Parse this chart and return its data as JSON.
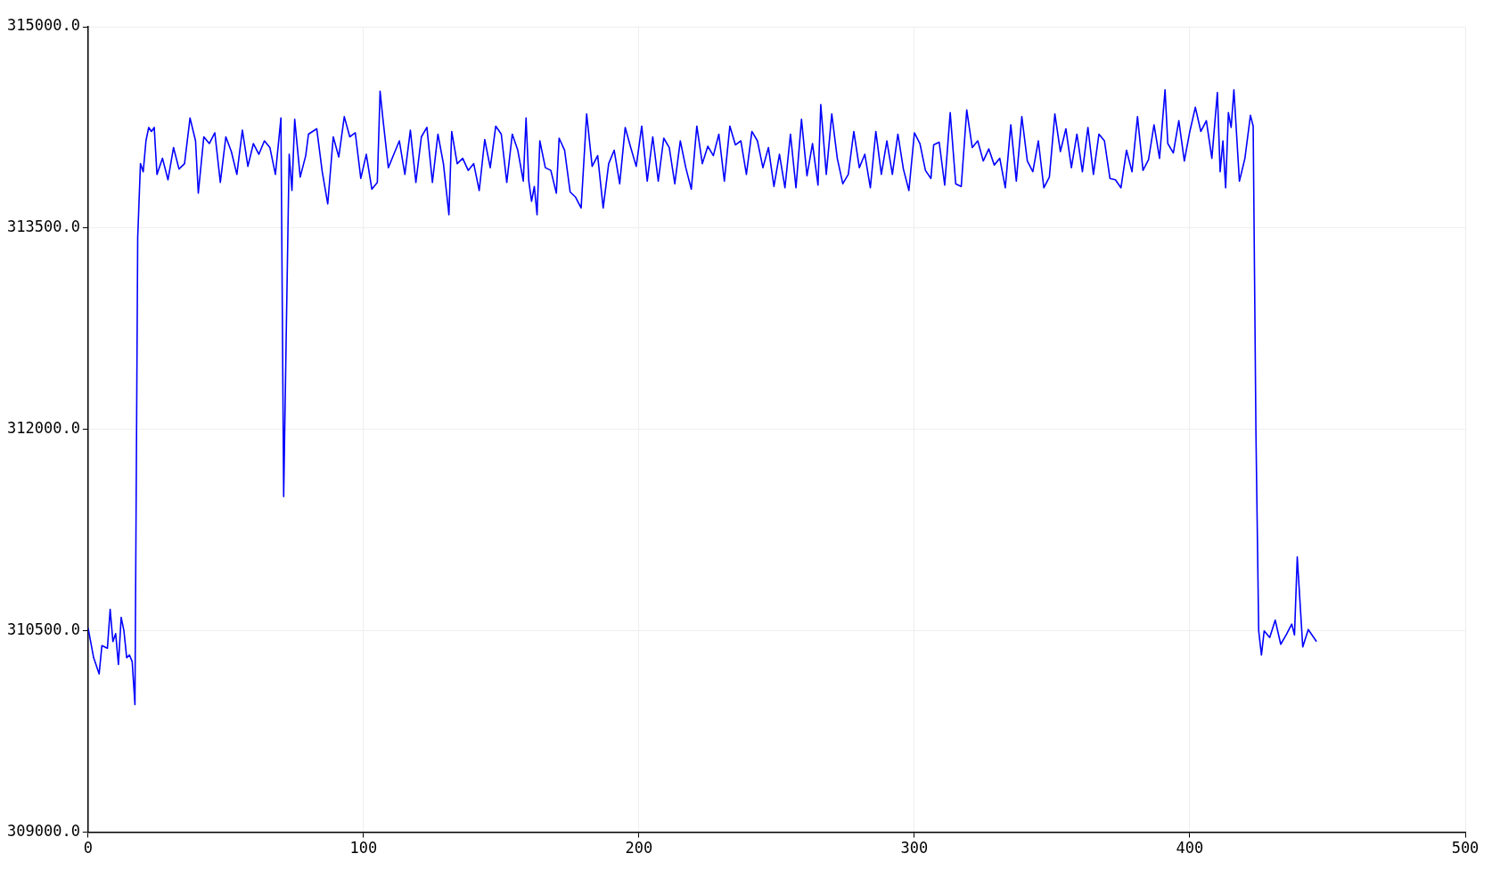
{
  "chart_data": {
    "type": "line",
    "x": [
      0,
      2,
      4,
      5,
      7,
      8,
      9,
      10,
      11,
      12,
      13,
      14,
      15,
      16,
      17,
      18,
      19,
      20,
      21,
      22,
      23,
      24,
      25,
      27,
      29,
      31,
      33,
      35,
      37,
      39,
      40,
      42,
      44,
      46,
      48,
      50,
      52,
      54,
      56,
      58,
      60,
      62,
      64,
      66,
      68,
      70,
      71,
      72,
      73,
      74,
      75,
      77,
      79,
      80,
      83,
      85,
      87,
      89,
      91,
      93,
      95,
      97,
      99,
      101,
      103,
      105,
      106,
      107,
      109,
      111,
      113,
      115,
      117,
      119,
      121,
      123,
      125,
      127,
      129,
      131,
      132,
      134,
      136,
      138,
      140,
      142,
      144,
      146,
      148,
      150,
      152,
      154,
      156,
      158,
      159,
      160,
      161,
      162,
      163,
      164,
      166,
      168,
      170,
      171,
      173,
      175,
      177,
      179,
      181,
      183,
      185,
      187,
      189,
      191,
      193,
      195,
      197,
      199,
      201,
      203,
      205,
      207,
      209,
      211,
      213,
      215,
      217,
      219,
      221,
      223,
      225,
      227,
      229,
      231,
      233,
      235,
      237,
      239,
      241,
      243,
      245,
      247,
      249,
      251,
      253,
      255,
      257,
      259,
      261,
      263,
      265,
      266,
      268,
      270,
      272,
      274,
      276,
      278,
      280,
      282,
      284,
      286,
      288,
      290,
      292,
      294,
      296,
      298,
      300,
      302,
      304,
      306,
      307,
      309,
      311,
      313,
      315,
      317,
      319,
      321,
      323,
      325,
      327,
      329,
      331,
      333,
      335,
      337,
      339,
      341,
      343,
      345,
      347,
      349,
      351,
      353,
      355,
      357,
      359,
      361,
      363,
      365,
      367,
      369,
      371,
      373,
      375,
      377,
      379,
      381,
      383,
      385,
      387,
      389,
      391,
      392,
      394,
      396,
      398,
      400,
      402,
      404,
      406,
      408,
      410,
      411,
      412,
      413,
      414,
      415,
      416,
      418,
      420,
      422,
      423,
      424,
      425,
      426,
      427,
      429,
      431,
      433,
      435,
      437,
      438,
      439,
      441,
      443,
      446
    ],
    "series": [
      {
        "color": "#0000ff",
        "values": [
          310520,
          310300,
          310180,
          310390,
          310370,
          310660,
          310420,
          310480,
          310250,
          310600,
          310500,
          310300,
          310320,
          310270,
          309950,
          313430,
          313980,
          313920,
          314150,
          314250,
          314220,
          314250,
          313900,
          314020,
          313860,
          314100,
          313940,
          313980,
          314320,
          314150,
          313760,
          314180,
          314130,
          314210,
          313840,
          314180,
          314070,
          313900,
          314230,
          313960,
          314130,
          314050,
          314150,
          314100,
          313900,
          314320,
          311500,
          312800,
          314050,
          313780,
          314310,
          313880,
          314040,
          314200,
          314240,
          313920,
          313680,
          314180,
          314030,
          314330,
          314180,
          314210,
          313870,
          314050,
          313790,
          313840,
          314520,
          314320,
          313950,
          314050,
          314150,
          313900,
          314230,
          313840,
          314180,
          314250,
          313840,
          314200,
          313980,
          313600,
          314220,
          313980,
          314020,
          313930,
          313980,
          313780,
          314160,
          313950,
          314260,
          314200,
          313840,
          314200,
          314080,
          313850,
          314320,
          313850,
          313700,
          313810,
          313600,
          314150,
          313950,
          313930,
          313760,
          314170,
          314080,
          313770,
          313730,
          313650,
          314350,
          313960,
          314040,
          313650,
          313980,
          314080,
          313830,
          314250,
          314100,
          313960,
          314260,
          313850,
          314180,
          313850,
          314170,
          314100,
          313830,
          314150,
          313950,
          313790,
          314260,
          313980,
          314110,
          314040,
          314200,
          313850,
          314260,
          314120,
          314150,
          313900,
          314220,
          314150,
          313950,
          314100,
          313810,
          314050,
          313800,
          314200,
          313800,
          314310,
          313890,
          314130,
          313820,
          314420,
          313900,
          314350,
          314020,
          313830,
          313900,
          314220,
          313950,
          314050,
          313800,
          314220,
          313900,
          314150,
          313900,
          314200,
          313940,
          313780,
          314210,
          314130,
          313930,
          313870,
          314120,
          314140,
          313820,
          314360,
          313830,
          313810,
          314380,
          314100,
          314150,
          314000,
          314090,
          313970,
          314020,
          313800,
          314270,
          313850,
          314330,
          314000,
          313920,
          314150,
          313800,
          313880,
          314350,
          314070,
          314240,
          313950,
          314200,
          313920,
          314250,
          313900,
          314200,
          314150,
          313870,
          313860,
          313800,
          314080,
          313920,
          314330,
          313930,
          314010,
          314270,
          314020,
          314530,
          314130,
          314060,
          314300,
          314000,
          314220,
          314400,
          314220,
          314300,
          314020,
          314510,
          313920,
          314150,
          313800,
          314360,
          314250,
          314530,
          313850,
          314020,
          314340,
          314260,
          311980,
          310500,
          310320,
          310500,
          310450,
          310580,
          310400,
          310470,
          310550,
          310470,
          311050,
          310380,
          310510,
          310420
        ]
      }
    ],
    "xlim": [
      0,
      500
    ],
    "xticks": [
      0,
      100,
      200,
      300,
      400,
      500
    ],
    "ylim": [
      309000,
      315000
    ],
    "yticks": [
      {
        "value": 309000,
        "label": "309000.0"
      },
      {
        "value": 310500,
        "label": "310500.0"
      },
      {
        "value": 312000,
        "label": "312000.0"
      },
      {
        "value": 313500,
        "label": "313500.0"
      },
      {
        "value": 315000,
        "label": "315000.0"
      }
    ],
    "grid": true,
    "marker": "none",
    "line_style": "solid"
  }
}
